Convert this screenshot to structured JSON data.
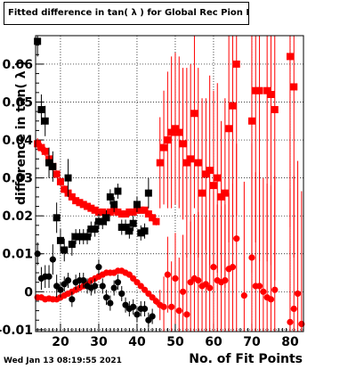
{
  "chart_data": {
    "type": "scatter",
    "title": "Fitted difference in tan( λ ) for Global Rec Pion NoHits",
    "xlabel": "No. of Fit Points",
    "ylabel": "difference in tan( λ )",
    "footer": "Wed Jan 13 08:19:55 2021",
    "xlim": [
      13.5,
      83.5
    ],
    "ylim": [
      -0.0105,
      0.0675
    ],
    "x_ticks": [
      20,
      30,
      40,
      50,
      60,
      70,
      80
    ],
    "x_tick_labels": [
      "20",
      "30",
      "40",
      "50",
      "60",
      "70",
      "80"
    ],
    "y_ticks": [
      -0.01,
      0,
      0.01,
      0.02,
      0.03,
      0.04,
      0.05,
      0.06
    ],
    "y_tick_labels": [
      "-0.01",
      "0",
      "0.01",
      "0.02",
      "0.03",
      "0.04",
      "0.05",
      "0.06"
    ],
    "grid": true,
    "colors": {
      "series1": "#ff0000",
      "series2": "#000000",
      "axes": "#000000",
      "grid": "#000000"
    },
    "series": [
      {
        "marker": "square",
        "color": "#ff0000",
        "x": [
          14,
          15,
          16,
          17,
          18,
          19,
          20,
          21,
          22,
          23,
          24,
          25,
          26,
          27,
          28,
          29,
          30,
          31,
          32,
          33,
          34,
          35,
          36,
          37,
          38,
          39,
          40,
          41,
          42,
          43,
          44,
          45,
          46,
          47,
          48,
          49,
          50,
          51,
          52,
          53,
          54,
          55,
          56,
          57,
          58,
          59,
          60,
          61,
          62,
          63,
          64,
          65,
          66,
          67,
          68,
          69,
          70,
          71,
          72,
          73,
          74,
          75,
          76,
          77,
          78,
          79,
          80,
          81,
          82,
          83
        ],
        "y": [
          0.039,
          0.038,
          0.037,
          0.035,
          0.033,
          0.031,
          0.029,
          0.027,
          0.026,
          0.025,
          0.024,
          0.0235,
          0.023,
          0.0225,
          0.022,
          0.0215,
          0.021,
          0.021,
          0.0205,
          0.021,
          0.0215,
          0.021,
          0.0205,
          0.0205,
          0.021,
          0.021,
          0.0215,
          0.0215,
          0.0215,
          0.0205,
          0.0195,
          0.0185,
          0.034,
          0.038,
          0.04,
          0.042,
          0.043,
          0.042,
          0.039,
          0.034,
          0.035,
          0.047,
          0.034,
          0.026,
          0.031,
          0.032,
          0.028,
          0.03,
          0.025,
          0.026,
          0.043,
          0.049,
          0.06,
          null,
          null,
          null,
          0.045,
          0.053,
          0.053,
          null,
          0.053,
          0.052,
          0.048,
          null,
          null,
          null,
          0.062,
          0.054,
          null,
          null
        ],
        "err": [
          0.0015,
          0.0012,
          0.0012,
          0.0012,
          0.001,
          0.001,
          0.001,
          0.001,
          0.0008,
          0.0008,
          0.0008,
          0.0008,
          0.0008,
          0.0008,
          0.0008,
          0.0008,
          0.0008,
          0.0008,
          0.0008,
          0.0008,
          0.0008,
          0.0008,
          0.0008,
          0.0008,
          0.0008,
          0.0008,
          0.0008,
          0.0008,
          0.0008,
          0.0008,
          0.001,
          0.001,
          0.012,
          0.015,
          0.018,
          0.02,
          0.02,
          0.02,
          0.02,
          0.025,
          0.025,
          0.025,
          0.025,
          0.025,
          0.02,
          0.025,
          0.025,
          0.025,
          0.02,
          0.025,
          0.03,
          0.035,
          0.04,
          0,
          0,
          0,
          0.04,
          0.04,
          0.045,
          0,
          0.045,
          0.045,
          0.045,
          0,
          0,
          0,
          0.045,
          0.045,
          0,
          0
        ]
      },
      {
        "marker": "circle",
        "color": "#ff0000",
        "x": [
          14,
          15,
          16,
          17,
          18,
          19,
          20,
          21,
          22,
          23,
          24,
          25,
          26,
          27,
          28,
          29,
          30,
          31,
          32,
          33,
          34,
          35,
          36,
          37,
          38,
          39,
          40,
          41,
          42,
          43,
          44,
          45,
          46,
          47,
          48,
          49,
          50,
          51,
          52,
          53,
          54,
          55,
          56,
          57,
          58,
          59,
          60,
          61,
          62,
          63,
          64,
          65,
          66,
          67,
          68,
          69,
          70,
          71,
          72,
          73,
          74,
          75,
          76,
          77,
          78,
          79,
          80,
          81,
          82,
          83
        ],
        "y": [
          -0.0015,
          -0.0015,
          -0.002,
          -0.0018,
          -0.002,
          -0.002,
          -0.0015,
          -0.001,
          -0.0005,
          0,
          0.0005,
          0.001,
          0.0015,
          0.002,
          0.003,
          0.0035,
          0.004,
          0.0045,
          0.005,
          0.005,
          0.005,
          0.0055,
          0.0055,
          0.005,
          0.0045,
          0.0035,
          0.0025,
          0.0015,
          0.0005,
          -0.0005,
          -0.0015,
          -0.0025,
          -0.0035,
          -0.004,
          0.0045,
          -0.004,
          0.0035,
          -0.005,
          0,
          -0.006,
          0.0025,
          0.0035,
          0.003,
          0.0015,
          0.002,
          0.001,
          0.0065,
          0.003,
          0.0025,
          0.003,
          0.006,
          0.0065,
          0.014,
          null,
          -0.001,
          null,
          0.009,
          0.0015,
          0.0015,
          0,
          -0.0015,
          -0.002,
          0.0005,
          null,
          null,
          null,
          -0.008,
          -0.0045,
          -0.0005,
          -0.0085
        ],
        "err": [
          0.0006,
          0.0006,
          0.0006,
          0.0006,
          0.0006,
          0.0006,
          0.0006,
          0.0006,
          0.0006,
          0.0006,
          0.0006,
          0.0006,
          0.0006,
          0.0006,
          0.0006,
          0.0006,
          0.0006,
          0.0006,
          0.0006,
          0.0006,
          0.0006,
          0.0006,
          0.0006,
          0.0006,
          0.0006,
          0.0006,
          0.0006,
          0.0006,
          0.0006,
          0.0006,
          0.0008,
          0.001,
          0.004,
          0.008,
          0.01,
          0.012,
          0.012,
          0.014,
          0.015,
          0.016,
          0.016,
          0.017,
          0.018,
          0.018,
          0.018,
          0.018,
          0.02,
          0.02,
          0.02,
          0.02,
          0.02,
          0.022,
          0.025,
          0,
          0.03,
          0,
          0.03,
          0.03,
          0.03,
          0.03,
          0.03,
          0.03,
          0.03,
          0,
          0,
          0,
          0.035,
          0.035,
          0.035,
          0.035
        ]
      },
      {
        "marker": "square",
        "color": "#000000",
        "x": [
          14,
          15,
          16,
          17,
          18,
          19,
          20,
          21,
          22,
          23,
          24,
          25,
          26,
          27,
          28,
          29,
          30,
          31,
          32,
          33,
          34,
          35,
          36,
          37,
          38,
          39,
          40,
          41,
          42,
          43,
          44,
          45
        ],
        "y": [
          0.066,
          0.048,
          0.045,
          0.034,
          0.033,
          0.0195,
          0.0135,
          0.011,
          0.03,
          0.0125,
          0.0145,
          0.0145,
          0.0145,
          0.0145,
          0.0165,
          0.0165,
          0.0185,
          0.0185,
          0.0195,
          0.025,
          0.023,
          0.0265,
          0.017,
          0.017,
          0.016,
          0.018,
          0.023,
          0.0155,
          0.016,
          0.026,
          null,
          null
        ],
        "err": [
          0.004,
          0.004,
          0.004,
          0.004,
          0.004,
          0.004,
          0.003,
          0.003,
          0.005,
          0.003,
          0.002,
          0.002,
          0.002,
          0.002,
          0.002,
          0.002,
          0.002,
          0.002,
          0.002,
          0.002,
          0.002,
          0.002,
          0.002,
          0.002,
          0.002,
          0.002,
          0.002,
          0.002,
          0.002,
          0.004,
          0,
          0
        ]
      },
      {
        "marker": "circle",
        "color": "#000000",
        "x": [
          14,
          15,
          16,
          17,
          18,
          19,
          20,
          21,
          22,
          23,
          24,
          25,
          26,
          27,
          28,
          29,
          30,
          31,
          32,
          33,
          34,
          35,
          36,
          37,
          38,
          39,
          40,
          41,
          42,
          43,
          44
        ],
        "y": [
          0.01,
          0.0035,
          0.004,
          0.004,
          0.0085,
          0.0015,
          0.0005,
          0.002,
          0.003,
          -0.002,
          0.0025,
          0.003,
          0.003,
          0.0015,
          0.001,
          0.0015,
          0.0065,
          0.0015,
          -0.0015,
          -0.003,
          0.001,
          0.0025,
          -0.0005,
          -0.0035,
          -0.0045,
          -0.004,
          -0.006,
          -0.0045,
          -0.0045,
          -0.0075,
          -0.0065
        ],
        "err": [
          0.003,
          0.003,
          0.003,
          0.003,
          0.004,
          0.003,
          0.002,
          0.002,
          0.002,
          0.002,
          0.002,
          0.002,
          0.002,
          0.002,
          0.002,
          0.002,
          0.002,
          0.002,
          0.002,
          0.002,
          0.002,
          0.002,
          0.002,
          0.002,
          0.002,
          0.002,
          0.002,
          0.002,
          0.002,
          0.002,
          0.002
        ]
      }
    ]
  }
}
